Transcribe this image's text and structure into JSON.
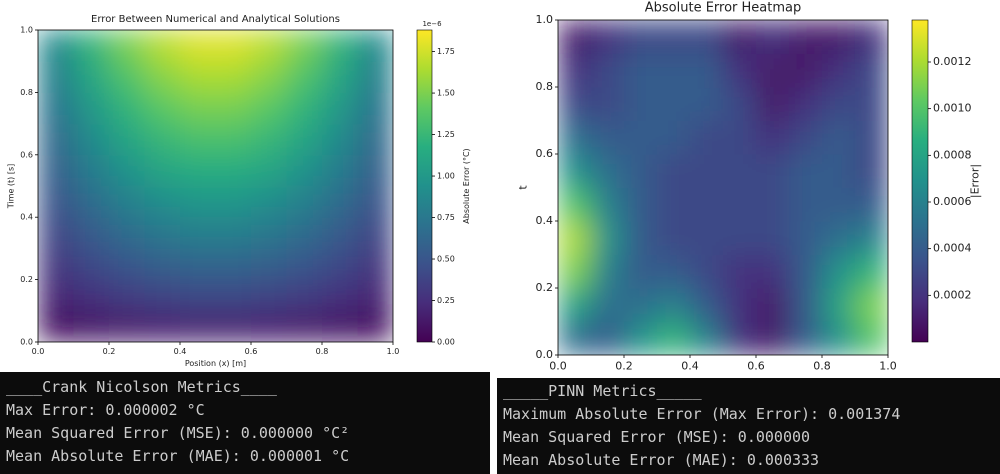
{
  "chart_data": [
    {
      "type": "heatmap",
      "title": "Error Between Numerical and Analytical Solutions",
      "xlabel": "Position (x) [m]",
      "ylabel": "Time (t) [s]",
      "colorbar_label": "Absolute Error (°C)",
      "colorbar_offset": "1e−6",
      "colormap": "viridis",
      "x": [
        0.05,
        0.15,
        0.25,
        0.35,
        0.45,
        0.55,
        0.65,
        0.75,
        0.85,
        0.95
      ],
      "y": [
        0.05,
        0.15,
        0.25,
        0.35,
        0.45,
        0.55,
        0.65,
        0.75,
        0.85,
        0.95
      ],
      "values": [
        [
          0.08,
          0.11,
          0.14,
          0.16,
          0.17,
          0.17,
          0.16,
          0.14,
          0.11,
          0.08
        ],
        [
          0.2,
          0.27,
          0.34,
          0.38,
          0.41,
          0.41,
          0.38,
          0.34,
          0.27,
          0.2
        ],
        [
          0.3,
          0.42,
          0.51,
          0.58,
          0.61,
          0.61,
          0.58,
          0.51,
          0.42,
          0.3
        ],
        [
          0.4,
          0.54,
          0.66,
          0.75,
          0.8,
          0.8,
          0.75,
          0.66,
          0.54,
          0.4
        ],
        [
          0.49,
          0.66,
          0.81,
          0.92,
          0.98,
          0.98,
          0.92,
          0.81,
          0.66,
          0.49
        ],
        [
          0.57,
          0.78,
          0.96,
          1.09,
          1.16,
          1.16,
          1.09,
          0.96,
          0.78,
          0.57
        ],
        [
          0.65,
          0.89,
          1.09,
          1.24,
          1.32,
          1.32,
          1.24,
          1.09,
          0.89,
          0.65
        ],
        [
          0.73,
          1.0,
          1.22,
          1.39,
          1.48,
          1.48,
          1.39,
          1.22,
          1.0,
          0.73
        ],
        [
          0.81,
          1.11,
          1.35,
          1.53,
          1.63,
          1.63,
          1.53,
          1.35,
          1.11,
          0.81
        ],
        [
          0.88,
          1.21,
          1.48,
          1.67,
          1.78,
          1.78,
          1.67,
          1.48,
          1.21,
          0.88
        ]
      ],
      "xlim": [
        0,
        1
      ],
      "ylim": [
        0,
        1
      ],
      "xticks": [
        {
          "value": 0,
          "label": "0.0"
        },
        {
          "value": 0.2,
          "label": "0.2"
        },
        {
          "value": 0.4,
          "label": "0.4"
        },
        {
          "value": 0.6,
          "label": "0.6"
        },
        {
          "value": 0.8,
          "label": "0.8"
        },
        {
          "value": 1,
          "label": "1.0"
        }
      ],
      "yticks": [
        {
          "value": 0,
          "label": "0.0"
        },
        {
          "value": 0.2,
          "label": "0.2"
        },
        {
          "value": 0.4,
          "label": "0.4"
        },
        {
          "value": 0.6,
          "label": "0.6"
        },
        {
          "value": 0.8,
          "label": "0.8"
        },
        {
          "value": 1,
          "label": "1.0"
        }
      ],
      "clim": [
        0,
        1.88
      ],
      "cticks": [
        {
          "value": 0,
          "label": "0.00"
        },
        0.25,
        {
          "value": 0.5,
          "label": "0.50"
        },
        0.75,
        {
          "value": 1,
          "label": "1.00"
        },
        1.25,
        {
          "value": 1.5,
          "label": "1.50"
        },
        1.75
      ]
    },
    {
      "type": "heatmap",
      "title": "Absolute Error Heatmap",
      "ylabel": "t",
      "colorbar_label": "|Error|",
      "colormap": "viridis",
      "x": [
        0.05,
        0.15,
        0.25,
        0.35,
        0.45,
        0.55,
        0.65,
        0.75,
        0.85,
        0.95
      ],
      "y": [
        0.05,
        0.15,
        0.25,
        0.35,
        0.45,
        0.55,
        0.65,
        0.75,
        0.85,
        0.95
      ],
      "values": [
        [
          0.0005,
          0.0004,
          0.0007,
          0.0009,
          0.0006,
          0.0002,
          0.0001,
          0.0004,
          0.0007,
          0.001
        ],
        [
          0.0008,
          0.0005,
          0.0005,
          0.0006,
          0.0004,
          0.0002,
          0.0001,
          0.0004,
          0.0008,
          0.0011
        ],
        [
          0.0011,
          0.0006,
          0.0004,
          0.0004,
          0.0003,
          0.0002,
          0.0002,
          0.0004,
          0.0007,
          0.0009
        ],
        [
          0.0012,
          0.0007,
          0.0004,
          0.0003,
          0.0003,
          0.0003,
          0.0003,
          0.0004,
          0.0005,
          0.0006
        ],
        [
          0.001,
          0.0006,
          0.0004,
          0.0003,
          0.0003,
          0.0003,
          0.0003,
          0.0004,
          0.0004,
          0.0004
        ],
        [
          0.0007,
          0.0005,
          0.0004,
          0.0003,
          0.0003,
          0.0003,
          0.0003,
          0.0004,
          0.0004,
          0.0003
        ],
        [
          0.0005,
          0.0004,
          0.0004,
          0.0004,
          0.0003,
          0.0003,
          0.0002,
          0.0003,
          0.0004,
          0.0003
        ],
        [
          0.0003,
          0.0003,
          0.0004,
          0.0004,
          0.0004,
          0.0003,
          0.0001,
          0.0002,
          0.0003,
          0.0003
        ],
        [
          0.0002,
          0.0003,
          0.0004,
          0.0004,
          0.0004,
          0.0002,
          0.0001,
          0.0001,
          0.0002,
          0.0003
        ],
        [
          0.0001,
          0.0002,
          0.0003,
          0.0003,
          0.0003,
          0.0001,
          0.0002,
          0.0001,
          0.0001,
          0.0002
        ]
      ],
      "xlim": [
        0,
        1
      ],
      "ylim": [
        0,
        1
      ],
      "xticks": [
        {
          "value": 0,
          "label": "0.0"
        },
        {
          "value": 0.2,
          "label": "0.2"
        },
        {
          "value": 0.4,
          "label": "0.4"
        },
        {
          "value": 0.6,
          "label": "0.6"
        },
        {
          "value": 0.8,
          "label": "0.8"
        },
        {
          "value": 1,
          "label": "1.0"
        }
      ],
      "yticks": [
        {
          "value": 0,
          "label": "0.0"
        },
        {
          "value": 0.2,
          "label": "0.2"
        },
        {
          "value": 0.4,
          "label": "0.4"
        },
        {
          "value": 0.6,
          "label": "0.6"
        },
        {
          "value": 0.8,
          "label": "0.8"
        },
        {
          "value": 1,
          "label": "1.0"
        }
      ],
      "clim": [
        0,
        0.00138
      ],
      "cticks": [
        0.0002,
        0.0004,
        0.0006,
        0.0008,
        {
          "value": 0.001,
          "label": "0.0010"
        },
        0.0012
      ]
    }
  ],
  "panels": [
    {
      "lines": [
        "____Crank Nicolson Metrics____",
        "Max Error: 0.000002 °C",
        "Mean Squared Error (MSE): 0.000000 °C²",
        "Mean Absolute Error (MAE): 0.000001 °C"
      ]
    },
    {
      "lines": [
        "_____PINN Metrics_____",
        "Maximum Absolute Error (Max Error): 0.001374",
        "Mean Squared Error (MSE): 0.000000",
        "Mean Absolute Error (MAE): 0.000333"
      ]
    }
  ]
}
